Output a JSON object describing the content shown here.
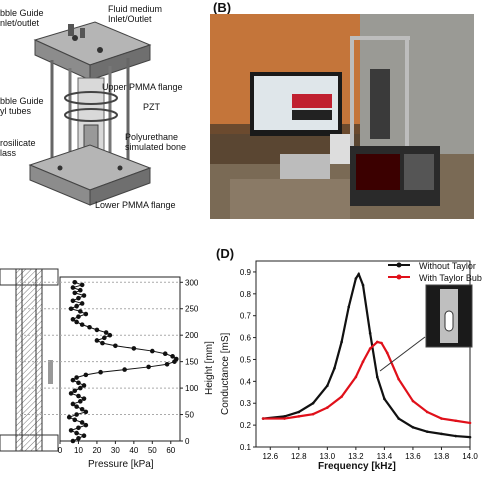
{
  "panelA": {
    "labels": {
      "bubble_guide_inlet": "bble Guide\nnlet/outlet",
      "fluid_medium": "Fluid medium\nInlet/Outlet",
      "upper_flange": "Upper PMMA flange",
      "bubble_guide_tubes": "bble Guide\nyl tubes",
      "pzt": "PZT",
      "borosilicate": "rosilicate\nlass",
      "polyurethane": "Polyurethane\nsimulated bone",
      "lower_flange": "Lower PMMA flange"
    }
  },
  "panelB": {
    "letter": "(B)"
  },
  "panelD": {
    "letter": "(D)"
  },
  "chart_data": [
    {
      "type": "scatter",
      "xlabel": "Pressure [kPa]",
      "ylabel": "Height [mm]",
      "xlim": [
        0,
        65
      ],
      "ylim": [
        0,
        310
      ],
      "xticks": [
        "0",
        "10",
        "20",
        "30",
        "40",
        "50",
        "60"
      ],
      "yticks": [
        "0",
        "50",
        "100",
        "150",
        "200",
        "250",
        "300"
      ],
      "grid": false,
      "points": [
        [
          8,
          300
        ],
        [
          12,
          295
        ],
        [
          7,
          290
        ],
        [
          11,
          285
        ],
        [
          8,
          280
        ],
        [
          13,
          275
        ],
        [
          10,
          270
        ],
        [
          7,
          265
        ],
        [
          12,
          260
        ],
        [
          9,
          255
        ],
        [
          6,
          250
        ],
        [
          11,
          245
        ],
        [
          14,
          240
        ],
        [
          10,
          235
        ],
        [
          7,
          230
        ],
        [
          9,
          225
        ],
        [
          12,
          220
        ],
        [
          16,
          215
        ],
        [
          20,
          210
        ],
        [
          25,
          205
        ],
        [
          27,
          200
        ],
        [
          24,
          195
        ],
        [
          20,
          190
        ],
        [
          23,
          185
        ],
        [
          30,
          180
        ],
        [
          40,
          175
        ],
        [
          50,
          170
        ],
        [
          57,
          165
        ],
        [
          61,
          160
        ],
        [
          63,
          155
        ],
        [
          62,
          150
        ],
        [
          58,
          145
        ],
        [
          48,
          140
        ],
        [
          35,
          135
        ],
        [
          22,
          130
        ],
        [
          14,
          125
        ],
        [
          9,
          120
        ],
        [
          7,
          115
        ],
        [
          10,
          110
        ],
        [
          13,
          105
        ],
        [
          11,
          100
        ],
        [
          8,
          95
        ],
        [
          6,
          90
        ],
        [
          10,
          85
        ],
        [
          13,
          80
        ],
        [
          11,
          75
        ],
        [
          7,
          70
        ],
        [
          9,
          65
        ],
        [
          12,
          60
        ],
        [
          14,
          55
        ],
        [
          9,
          50
        ],
        [
          5,
          45
        ],
        [
          8,
          40
        ],
        [
          12,
          35
        ],
        [
          14,
          30
        ],
        [
          10,
          25
        ],
        [
          6,
          20
        ],
        [
          9,
          15
        ],
        [
          13,
          10
        ],
        [
          10,
          5
        ],
        [
          7,
          0
        ]
      ]
    },
    {
      "type": "line",
      "xlabel": "Frequency [kHz]",
      "ylabel": "Conductance [mS]",
      "xlim": [
        12.5,
        14.0
      ],
      "ylim": [
        0.1,
        0.95
      ],
      "xticks": [
        "12.6",
        "12.8",
        "13.0",
        "13.2",
        "13.4",
        "13.6",
        "13.8",
        "14.0"
      ],
      "yticks": [
        "0.1",
        "0.2",
        "0.3",
        "0.4",
        "0.5",
        "0.6",
        "0.7",
        "0.8",
        "0.9"
      ],
      "legend": "top-right",
      "series": [
        {
          "name": "Without Taylor",
          "color": "#111111",
          "x": [
            12.55,
            12.7,
            12.8,
            12.9,
            13.0,
            13.05,
            13.1,
            13.15,
            13.2,
            13.22,
            13.25,
            13.3,
            13.35,
            13.4,
            13.5,
            13.6,
            13.7,
            13.8,
            13.9,
            14.0
          ],
          "y": [
            0.23,
            0.24,
            0.26,
            0.3,
            0.38,
            0.46,
            0.58,
            0.74,
            0.87,
            0.89,
            0.84,
            0.62,
            0.42,
            0.32,
            0.23,
            0.19,
            0.17,
            0.16,
            0.15,
            0.145
          ]
        },
        {
          "name": "With Taylor Bub",
          "color": "#e0101a",
          "x": [
            12.55,
            12.7,
            12.8,
            12.9,
            13.0,
            13.1,
            13.2,
            13.25,
            13.3,
            13.35,
            13.38,
            13.42,
            13.5,
            13.6,
            13.7,
            13.8,
            13.9,
            14.0
          ],
          "y": [
            0.23,
            0.23,
            0.24,
            0.25,
            0.28,
            0.33,
            0.42,
            0.49,
            0.55,
            0.58,
            0.575,
            0.53,
            0.41,
            0.31,
            0.26,
            0.23,
            0.22,
            0.21
          ]
        }
      ]
    }
  ]
}
